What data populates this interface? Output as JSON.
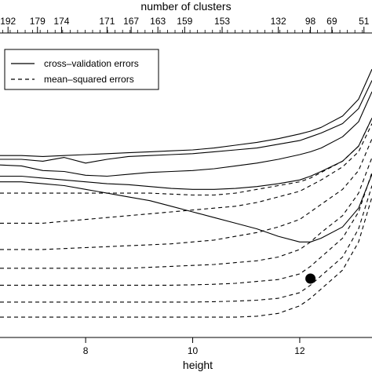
{
  "chart_data": {
    "type": "line",
    "top_axis": {
      "label": "number of clusters",
      "tick_labels": [
        "192",
        "179",
        "174",
        "171",
        "167",
        "163",
        "159",
        "153",
        "132",
        "98",
        "69",
        "51"
      ],
      "tick_heights": [
        6.55,
        7.1,
        7.55,
        8.4,
        8.85,
        9.35,
        9.85,
        10.55,
        11.6,
        12.2,
        12.6,
        13.2
      ]
    },
    "x_axis": {
      "label": "height",
      "tick_labels": [
        "8",
        "10",
        "12"
      ],
      "tick_values": [
        8,
        10,
        12
      ],
      "range": [
        6.4,
        13.35
      ]
    },
    "legend": {
      "entries": [
        {
          "label": "cross–validation errors",
          "style": "solid"
        },
        {
          "label": "mean–squared errors",
          "style": "dashed"
        }
      ],
      "placement": "top-left"
    },
    "marker": {
      "x": 12.2,
      "y": 0.305,
      "style": "filled-circle"
    },
    "series_style": {
      "cross_validation": "solid",
      "mse": "dashed"
    },
    "x": [
      6.4,
      6.8,
      7.2,
      7.6,
      8.0,
      8.4,
      8.8,
      9.2,
      9.6,
      10.0,
      10.4,
      10.8,
      11.2,
      11.6,
      12.0,
      12.2,
      12.4,
      12.8,
      13.1,
      13.35
    ],
    "series": [
      {
        "kind": "cv",
        "values": [
          0.96,
          0.96,
          0.955,
          0.96,
          0.965,
          0.97,
          0.975,
          0.98,
          0.985,
          0.99,
          1.0,
          1.015,
          1.03,
          1.05,
          1.075,
          1.09,
          1.11,
          1.17,
          1.26,
          1.42
        ]
      },
      {
        "kind": "cv",
        "values": [
          0.94,
          0.94,
          0.93,
          0.95,
          0.92,
          0.94,
          0.955,
          0.96,
          0.965,
          0.97,
          0.98,
          0.99,
          1.0,
          1.02,
          1.04,
          1.06,
          1.08,
          1.13,
          1.21,
          1.36
        ]
      },
      {
        "kind": "cv",
        "values": [
          0.91,
          0.905,
          0.88,
          0.875,
          0.855,
          0.85,
          0.86,
          0.87,
          0.875,
          0.88,
          0.89,
          0.905,
          0.92,
          0.94,
          0.965,
          0.98,
          1.0,
          1.06,
          1.14,
          1.3
        ]
      },
      {
        "kind": "cv",
        "values": [
          0.85,
          0.85,
          0.84,
          0.83,
          0.82,
          0.81,
          0.805,
          0.795,
          0.785,
          0.78,
          0.78,
          0.785,
          0.795,
          0.81,
          0.83,
          0.85,
          0.875,
          0.93,
          1.01,
          1.16
        ]
      },
      {
        "kind": "cv",
        "values": [
          0.82,
          0.82,
          0.81,
          0.8,
          0.78,
          0.76,
          0.74,
          0.72,
          0.69,
          0.66,
          0.63,
          0.6,
          0.57,
          0.53,
          0.5,
          0.5,
          0.52,
          0.58,
          0.68,
          0.86
        ]
      },
      {
        "kind": "mse",
        "values": [
          0.76,
          0.76,
          0.76,
          0.76,
          0.76,
          0.76,
          0.76,
          0.76,
          0.755,
          0.75,
          0.75,
          0.76,
          0.78,
          0.8,
          0.82,
          0.84,
          0.87,
          0.93,
          1.01,
          1.16
        ]
      },
      {
        "kind": "mse",
        "values": [
          0.6,
          0.6,
          0.6,
          0.61,
          0.62,
          0.63,
          0.64,
          0.65,
          0.66,
          0.67,
          0.68,
          0.69,
          0.71,
          0.74,
          0.77,
          0.8,
          0.83,
          0.9,
          0.98,
          1.13
        ]
      },
      {
        "kind": "mse",
        "values": [
          0.46,
          0.46,
          0.46,
          0.465,
          0.47,
          0.475,
          0.48,
          0.485,
          0.49,
          0.5,
          0.51,
          0.53,
          0.55,
          0.58,
          0.62,
          0.66,
          0.7,
          0.78,
          0.88,
          1.05
        ]
      },
      {
        "kind": "mse",
        "values": [
          0.36,
          0.36,
          0.36,
          0.36,
          0.36,
          0.36,
          0.36,
          0.365,
          0.37,
          0.375,
          0.38,
          0.39,
          0.4,
          0.42,
          0.46,
          0.5,
          0.55,
          0.64,
          0.76,
          0.95
        ]
      },
      {
        "kind": "mse",
        "values": [
          0.27,
          0.27,
          0.27,
          0.27,
          0.27,
          0.27,
          0.27,
          0.27,
          0.27,
          0.272,
          0.275,
          0.28,
          0.29,
          0.3,
          0.33,
          0.37,
          0.42,
          0.52,
          0.66,
          0.87
        ]
      },
      {
        "kind": "mse",
        "values": [
          0.18,
          0.18,
          0.18,
          0.18,
          0.18,
          0.18,
          0.18,
          0.18,
          0.18,
          0.18,
          0.182,
          0.185,
          0.19,
          0.2,
          0.23,
          0.27,
          0.32,
          0.42,
          0.57,
          0.8
        ]
      },
      {
        "kind": "mse",
        "values": [
          0.1,
          0.1,
          0.1,
          0.1,
          0.1,
          0.1,
          0.1,
          0.1,
          0.1,
          0.1,
          0.1,
          0.1,
          0.105,
          0.12,
          0.16,
          0.2,
          0.25,
          0.35,
          0.5,
          0.74
        ]
      }
    ]
  }
}
